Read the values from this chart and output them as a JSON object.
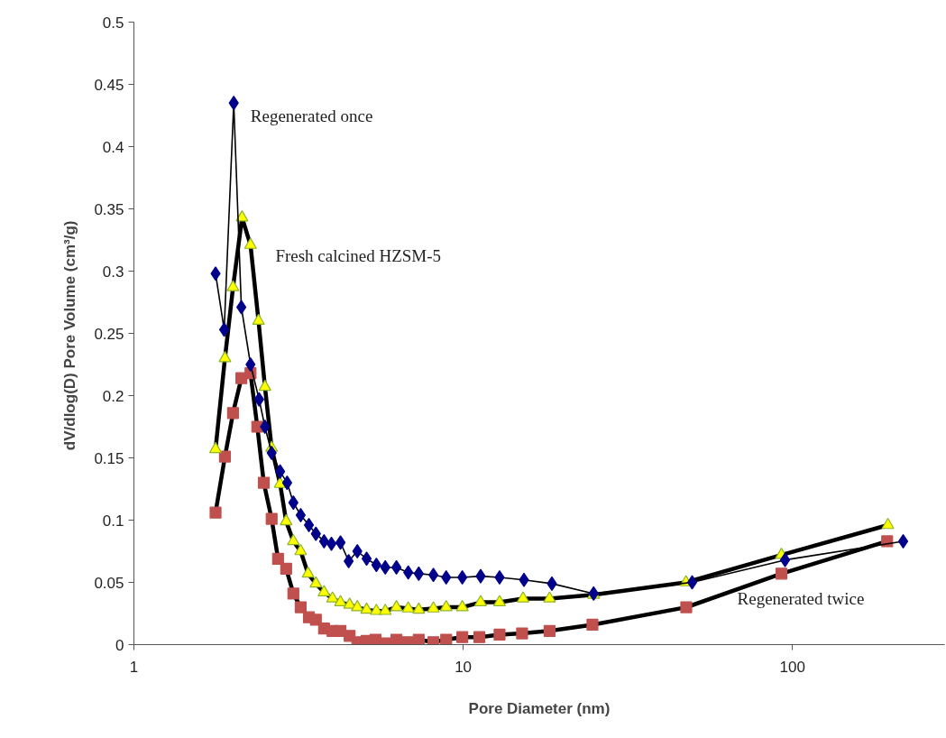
{
  "chart_data": {
    "type": "line",
    "xlabel": "Pore Diameter (nm)",
    "ylabel": "dV/dlog(D) Pore Volume  (cm³/g)",
    "log": "x",
    "grid": false,
    "legend": false,
    "xlim": [
      1,
      290
    ],
    "xticks": [
      1,
      10,
      100
    ],
    "ylim": [
      0,
      0.5
    ],
    "yticks": [
      0,
      0.05,
      0.1,
      0.15,
      0.2,
      0.25,
      0.3,
      0.35,
      0.4,
      0.45,
      0.5
    ],
    "series": [
      {
        "name": "Regenerated once",
        "color": "#00008b",
        "marker": "diamond",
        "x": [
          1.77,
          1.88,
          2.01,
          2.12,
          2.26,
          2.4,
          2.5,
          2.62,
          2.78,
          2.92,
          3.05,
          3.21,
          3.4,
          3.57,
          3.78,
          3.98,
          4.24,
          4.49,
          4.77,
          5.09,
          5.45,
          5.8,
          6.27,
          6.81,
          7.33,
          8.12,
          8.88,
          9.94,
          11.3,
          12.9,
          15.3,
          18.6,
          24.9,
          49.6,
          95.0,
          217
        ],
        "values": [
          0.298,
          0.253,
          0.435,
          0.271,
          0.225,
          0.197,
          0.175,
          0.154,
          0.139,
          0.13,
          0.114,
          0.104,
          0.096,
          0.089,
          0.083,
          0.081,
          0.082,
          0.067,
          0.075,
          0.069,
          0.064,
          0.062,
          0.062,
          0.058,
          0.057,
          0.056,
          0.054,
          0.054,
          0.055,
          0.054,
          0.052,
          0.049,
          0.041,
          0.05,
          0.068,
          0.083
        ]
      },
      {
        "name": "Fresh calcined HZSM-5",
        "color": "#ffff00",
        "marker": "triangle",
        "x": [
          1.77,
          1.89,
          2.0,
          2.13,
          2.26,
          2.39,
          2.5,
          2.62,
          2.78,
          2.9,
          3.05,
          3.21,
          3.38,
          3.57,
          3.78,
          4.01,
          4.24,
          4.52,
          4.77,
          5.09,
          5.45,
          5.8,
          6.27,
          6.81,
          7.33,
          8.12,
          8.88,
          9.94,
          11.3,
          12.9,
          15.2,
          18.3,
          24.9,
          47.5,
          92.6,
          195
        ],
        "values": [
          0.157,
          0.23,
          0.287,
          0.343,
          0.321,
          0.26,
          0.207,
          0.158,
          0.129,
          0.099,
          0.083,
          0.075,
          0.057,
          0.049,
          0.042,
          0.037,
          0.034,
          0.032,
          0.03,
          0.028,
          0.027,
          0.027,
          0.03,
          0.029,
          0.028,
          0.029,
          0.03,
          0.03,
          0.034,
          0.034,
          0.037,
          0.037,
          0.04,
          0.05,
          0.072,
          0.096
        ]
      },
      {
        "name": "Regenerated twice",
        "color": "#c0504d",
        "marker": "square",
        "x": [
          1.77,
          1.89,
          2.0,
          2.12,
          2.26,
          2.37,
          2.48,
          2.62,
          2.74,
          2.9,
          3.05,
          3.21,
          3.4,
          3.57,
          3.78,
          4.01,
          4.24,
          4.52,
          4.77,
          5.09,
          5.42,
          5.8,
          6.27,
          6.76,
          7.33,
          8.12,
          8.88,
          9.94,
          11.2,
          12.9,
          15.1,
          18.3,
          24.7,
          47.6,
          92.6,
          194
        ],
        "values": [
          0.106,
          0.151,
          0.186,
          0.214,
          0.218,
          0.175,
          0.13,
          0.101,
          0.069,
          0.061,
          0.041,
          0.03,
          0.022,
          0.02,
          0.013,
          0.011,
          0.011,
          0.007,
          0.002,
          0.003,
          0.004,
          0.001,
          0.004,
          0.002,
          0.004,
          0.002,
          0.004,
          0.006,
          0.006,
          0.008,
          0.009,
          0.011,
          0.016,
          0.03,
          0.057,
          0.083
        ]
      }
    ]
  }
}
